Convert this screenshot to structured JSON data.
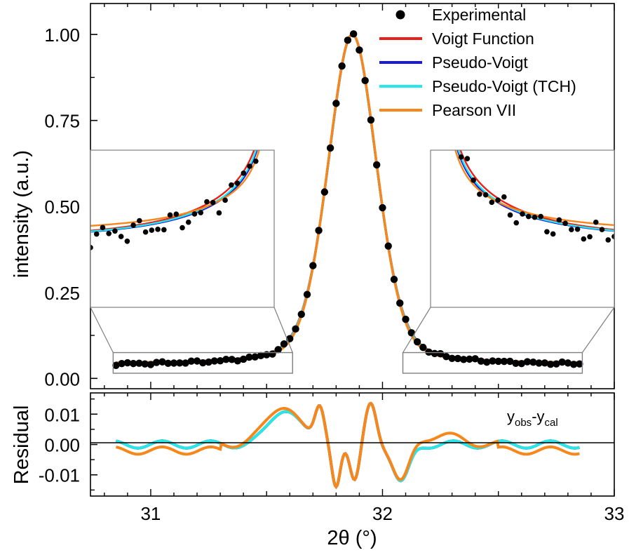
{
  "chart_data": [
    {
      "type": "line",
      "panel": "main",
      "ylabel": "intensity (a.u.)",
      "xlim": [
        30.74,
        33.0
      ],
      "ylim": [
        -0.03,
        1.09
      ],
      "yticks": [
        0.0,
        0.25,
        0.5,
        0.75,
        1.0
      ],
      "ytick_labels": [
        "0.00",
        "0.25",
        "0.50",
        "0.75",
        "1.00"
      ],
      "peak": {
        "center": 31.87,
        "fwhm": 0.25,
        "baseline": 0.04
      },
      "x_range": [
        30.85,
        32.85
      ],
      "legend": {
        "position": "top-right",
        "entries": [
          {
            "label": "Experimental",
            "color": "#000000",
            "marker": "circle"
          },
          {
            "label": "Voigt Function",
            "color": "#e8211c",
            "marker": "line"
          },
          {
            "label": "Pseudo-Voigt",
            "color": "#1a1adb",
            "marker": "line"
          },
          {
            "label": "Pseudo-Voigt (TCH)",
            "color": "#26e8e8",
            "marker": "line"
          },
          {
            "label": "Pearson VII",
            "color": "#f7861b",
            "marker": "line"
          }
        ]
      },
      "insets": [
        {
          "side": "left",
          "zoom_x": [
            30.85,
            31.6
          ],
          "zoom_y": [
            0.015,
            0.075
          ]
        },
        {
          "side": "right",
          "zoom_x": [
            32.1,
            32.85
          ],
          "zoom_y": [
            0.015,
            0.075
          ]
        }
      ]
    },
    {
      "type": "line",
      "panel": "residual",
      "ylabel": "Residual",
      "xlabel": "2θ (°)",
      "xlim": [
        30.74,
        33.0
      ],
      "ylim": [
        -0.017,
        0.017
      ],
      "yticks": [
        0.01,
        0.0,
        -0.01
      ],
      "ytick_labels": [
        "0.01",
        "0.00",
        "-0.01"
      ],
      "xticks": [
        31,
        32,
        33
      ],
      "xtick_labels": [
        "31",
        "32",
        "33"
      ],
      "annotation": {
        "base": "y",
        "obs_sub": "obs",
        "dash": "-y",
        "cal_sub": "cal"
      }
    }
  ]
}
